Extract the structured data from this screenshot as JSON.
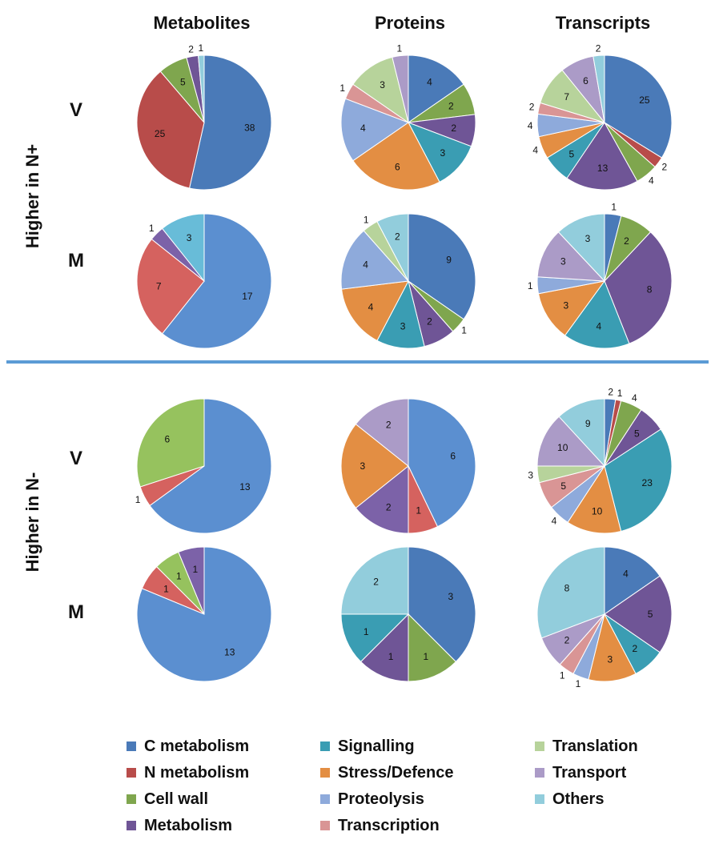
{
  "columns": [
    "Metabolites",
    "Proteins",
    "Transcripts"
  ],
  "groups": [
    "Higher in N+",
    "Higher in N-"
  ],
  "rows": [
    "V",
    "M",
    "V",
    "M"
  ],
  "categories": [
    "C metabolism",
    "N metabolism",
    "Cell wall",
    "Metabolism",
    "Signalling",
    "Stress/Defence",
    "Proteolysis",
    "Transcription",
    "Translation",
    "Transport",
    "Others"
  ],
  "colors": {
    "C metabolism": "#4a7ab8",
    "N metabolism": "#b84c4a",
    "Cell wall": "#7fa64e",
    "Metabolism": "#6f5596",
    "Signalling": "#3a9db3",
    "Stress/Defence": "#e38e43",
    "Proteolysis": "#8eaadb",
    "Transcription": "#d99595",
    "Translation": "#b7d39b",
    "Transport": "#ab9bc7",
    "Others": "#92cddc"
  },
  "colors_light": {
    "C metabolism": "#5b8fd0",
    "N metabolism": "#d5625f",
    "Cell wall": "#96c25e",
    "Metabolism": "#7c62a8",
    "Others": "#68bcd8"
  },
  "chart_data": [
    {
      "type": "pie",
      "column": "Metabolites",
      "group": "Higher in N+",
      "row": "V",
      "slices": [
        {
          "category": "C metabolism",
          "value": 38
        },
        {
          "category": "N metabolism",
          "value": 25
        },
        {
          "category": "Cell wall",
          "value": 5
        },
        {
          "category": "Metabolism",
          "value": 2
        },
        {
          "category": "Others",
          "value": 1
        }
      ]
    },
    {
      "type": "pie",
      "column": "Proteins",
      "group": "Higher in N+",
      "row": "V",
      "slices": [
        {
          "category": "C metabolism",
          "value": 4
        },
        {
          "category": "Cell wall",
          "value": 2
        },
        {
          "category": "Metabolism",
          "value": 2
        },
        {
          "category": "Signalling",
          "value": 3
        },
        {
          "category": "Stress/Defence",
          "value": 6
        },
        {
          "category": "Proteolysis",
          "value": 4
        },
        {
          "category": "Transcription",
          "value": 1
        },
        {
          "category": "Translation",
          "value": 3
        },
        {
          "category": "Transport",
          "value": 1
        }
      ]
    },
    {
      "type": "pie",
      "column": "Transcripts",
      "group": "Higher in N+",
      "row": "V",
      "slices": [
        {
          "category": "C metabolism",
          "value": 25
        },
        {
          "category": "N metabolism",
          "value": 2
        },
        {
          "category": "Cell wall",
          "value": 4
        },
        {
          "category": "Metabolism",
          "value": 13
        },
        {
          "category": "Signalling",
          "value": 5
        },
        {
          "category": "Stress/Defence",
          "value": 4
        },
        {
          "category": "Proteolysis",
          "value": 4
        },
        {
          "category": "Transcription",
          "value": 2
        },
        {
          "category": "Translation",
          "value": 7
        },
        {
          "category": "Transport",
          "value": 6
        },
        {
          "category": "Others",
          "value": 2
        }
      ]
    },
    {
      "type": "pie",
      "column": "Metabolites",
      "group": "Higher in N+",
      "row": "M",
      "light": true,
      "slices": [
        {
          "category": "C metabolism",
          "value": 17
        },
        {
          "category": "N metabolism",
          "value": 7
        },
        {
          "category": "Metabolism",
          "value": 1
        },
        {
          "category": "Others",
          "value": 3
        }
      ]
    },
    {
      "type": "pie",
      "column": "Proteins",
      "group": "Higher in N+",
      "row": "M",
      "slices": [
        {
          "category": "C metabolism",
          "value": 9
        },
        {
          "category": "Cell wall",
          "value": 1
        },
        {
          "category": "Metabolism",
          "value": 2
        },
        {
          "category": "Signalling",
          "value": 3
        },
        {
          "category": "Stress/Defence",
          "value": 4
        },
        {
          "category": "Proteolysis",
          "value": 4
        },
        {
          "category": "Translation",
          "value": 1
        },
        {
          "category": "Others",
          "value": 2
        }
      ]
    },
    {
      "type": "pie",
      "column": "Transcripts",
      "group": "Higher in N+",
      "row": "M",
      "slices": [
        {
          "category": "C metabolism",
          "value": 1
        },
        {
          "category": "Cell wall",
          "value": 2
        },
        {
          "category": "Metabolism",
          "value": 8
        },
        {
          "category": "Signalling",
          "value": 4
        },
        {
          "category": "Stress/Defence",
          "value": 3
        },
        {
          "category": "Proteolysis",
          "value": 1
        },
        {
          "category": "Transport",
          "value": 3
        },
        {
          "category": "Others",
          "value": 3
        }
      ]
    },
    {
      "type": "pie",
      "column": "Metabolites",
      "group": "Higher in N-",
      "row": "V",
      "light": true,
      "slices": [
        {
          "category": "C metabolism",
          "value": 13
        },
        {
          "category": "N metabolism",
          "value": 1
        },
        {
          "category": "Cell wall",
          "value": 6
        }
      ]
    },
    {
      "type": "pie",
      "column": "Proteins",
      "group": "Higher in N-",
      "row": "V",
      "light": true,
      "slices": [
        {
          "category": "C metabolism",
          "value": 6
        },
        {
          "category": "N metabolism",
          "value": 1
        },
        {
          "category": "Metabolism",
          "value": 2
        },
        {
          "category": "Stress/Defence",
          "value": 3
        },
        {
          "category": "Transport",
          "value": 2
        }
      ]
    },
    {
      "type": "pie",
      "column": "Transcripts",
      "group": "Higher in N-",
      "row": "V",
      "slices": [
        {
          "category": "C metabolism",
          "value": 2
        },
        {
          "category": "N metabolism",
          "value": 1
        },
        {
          "category": "Cell wall",
          "value": 4
        },
        {
          "category": "Metabolism",
          "value": 5
        },
        {
          "category": "Signalling",
          "value": 23
        },
        {
          "category": "Stress/Defence",
          "value": 10
        },
        {
          "category": "Proteolysis",
          "value": 4
        },
        {
          "category": "Transcription",
          "value": 5
        },
        {
          "category": "Translation",
          "value": 3
        },
        {
          "category": "Transport",
          "value": 10
        },
        {
          "category": "Others",
          "value": 9
        }
      ]
    },
    {
      "type": "pie",
      "column": "Metabolites",
      "group": "Higher in N-",
      "row": "M",
      "light": true,
      "slices": [
        {
          "category": "C metabolism",
          "value": 13
        },
        {
          "category": "N metabolism",
          "value": 1
        },
        {
          "category": "Cell wall",
          "value": 1
        },
        {
          "category": "Metabolism",
          "value": 1
        }
      ]
    },
    {
      "type": "pie",
      "column": "Proteins",
      "group": "Higher in N-",
      "row": "M",
      "slices": [
        {
          "category": "C metabolism",
          "value": 3
        },
        {
          "category": "Cell wall",
          "value": 1
        },
        {
          "category": "Metabolism",
          "value": 1
        },
        {
          "category": "Signalling",
          "value": 1
        },
        {
          "category": "Others",
          "value": 2
        }
      ]
    },
    {
      "type": "pie",
      "column": "Transcripts",
      "group": "Higher in N-",
      "row": "M",
      "slices": [
        {
          "category": "C metabolism",
          "value": 4
        },
        {
          "category": "Metabolism",
          "value": 5
        },
        {
          "category": "Signalling",
          "value": 2
        },
        {
          "category": "Stress/Defence",
          "value": 3
        },
        {
          "category": "Proteolysis",
          "value": 1
        },
        {
          "category": "Transcription",
          "value": 1
        },
        {
          "category": "Transport",
          "value": 2
        },
        {
          "category": "Others",
          "value": 8
        }
      ]
    }
  ],
  "legend": [
    [
      "C metabolism",
      "Signalling",
      "Translation"
    ],
    [
      "N metabolism",
      "Stress/Defence",
      "Transport"
    ],
    [
      "Cell wall",
      "Proteolysis",
      "Others"
    ],
    [
      "Metabolism",
      "Transcription"
    ]
  ],
  "divider_color": "#5b9bd5"
}
